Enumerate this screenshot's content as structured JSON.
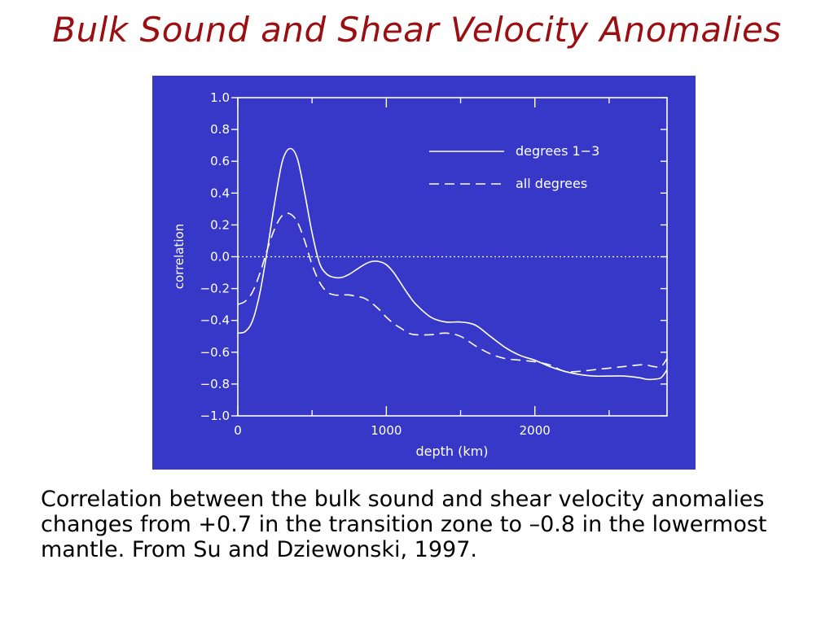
{
  "slide": {
    "title": "Bulk Sound and Shear Velocity Anomalies",
    "caption": "Correlation between the bulk sound and shear velocity anomalies changes from +0.7 in the transition zone to –0.8 in the lowermost mantle. From Su and Dziewonski, 1997."
  },
  "colors": {
    "title": "#9b0f12",
    "plot_background": "#3737c8",
    "plot_foreground": "#ffffff"
  },
  "chart_data": {
    "type": "line",
    "title": "",
    "xlabel": "depth (km)",
    "ylabel": "correlation",
    "xlim": [
      0,
      2890
    ],
    "ylim": [
      -1.0,
      1.0
    ],
    "x_ticks": [
      0,
      1000,
      2000
    ],
    "x_tick_labels": [
      "0",
      "1000",
      "2000"
    ],
    "y_ticks": [
      1.0,
      0.8,
      0.6,
      0.4,
      0.2,
      0.0,
      -0.2,
      -0.4,
      -0.6,
      -0.8,
      -1.0
    ],
    "y_tick_labels": [
      "1.0",
      "0.8",
      "0.6",
      "0.4",
      "0.2",
      "0.0",
      "−0.2",
      "−0.4",
      "−0.6",
      "−0.8",
      "−1.0"
    ],
    "grid": false,
    "reference_line": {
      "y": 0.0,
      "style": "dotted"
    },
    "legend_position": "top-right",
    "series": [
      {
        "name": "degrees 1−3",
        "style": "solid",
        "x": [
          0,
          50,
          100,
          150,
          200,
          250,
          300,
          350,
          400,
          450,
          500,
          550,
          600,
          650,
          700,
          750,
          800,
          850,
          900,
          950,
          1000,
          1050,
          1100,
          1150,
          1200,
          1300,
          1400,
          1500,
          1600,
          1700,
          1800,
          1900,
          2000,
          2100,
          2200,
          2300,
          2400,
          2500,
          2600,
          2700,
          2750,
          2800,
          2850,
          2890
        ],
        "y": [
          -0.48,
          -0.47,
          -0.4,
          -0.22,
          0.05,
          0.35,
          0.6,
          0.68,
          0.62,
          0.4,
          0.15,
          -0.04,
          -0.11,
          -0.13,
          -0.13,
          -0.11,
          -0.08,
          -0.05,
          -0.03,
          -0.03,
          -0.05,
          -0.1,
          -0.17,
          -0.24,
          -0.3,
          -0.38,
          -0.41,
          -0.41,
          -0.43,
          -0.5,
          -0.57,
          -0.62,
          -0.65,
          -0.69,
          -0.72,
          -0.74,
          -0.75,
          -0.75,
          -0.75,
          -0.76,
          -0.77,
          -0.77,
          -0.76,
          -0.71
        ]
      },
      {
        "name": "all degrees",
        "style": "dashed",
        "x": [
          0,
          50,
          100,
          150,
          200,
          250,
          300,
          350,
          400,
          450,
          500,
          550,
          600,
          650,
          700,
          750,
          800,
          850,
          900,
          950,
          1000,
          1050,
          1100,
          1150,
          1200,
          1300,
          1400,
          1500,
          1600,
          1700,
          1800,
          1900,
          2000,
          2100,
          2200,
          2300,
          2400,
          2500,
          2600,
          2700,
          2750,
          2800,
          2850,
          2890
        ],
        "y": [
          -0.3,
          -0.28,
          -0.22,
          -0.1,
          0.05,
          0.18,
          0.26,
          0.27,
          0.22,
          0.1,
          -0.05,
          -0.16,
          -0.22,
          -0.24,
          -0.24,
          -0.24,
          -0.25,
          -0.26,
          -0.29,
          -0.33,
          -0.38,
          -0.42,
          -0.45,
          -0.48,
          -0.49,
          -0.49,
          -0.48,
          -0.5,
          -0.56,
          -0.61,
          -0.64,
          -0.65,
          -0.66,
          -0.68,
          -0.72,
          -0.72,
          -0.71,
          -0.7,
          -0.69,
          -0.68,
          -0.68,
          -0.69,
          -0.69,
          -0.64
        ]
      }
    ]
  }
}
